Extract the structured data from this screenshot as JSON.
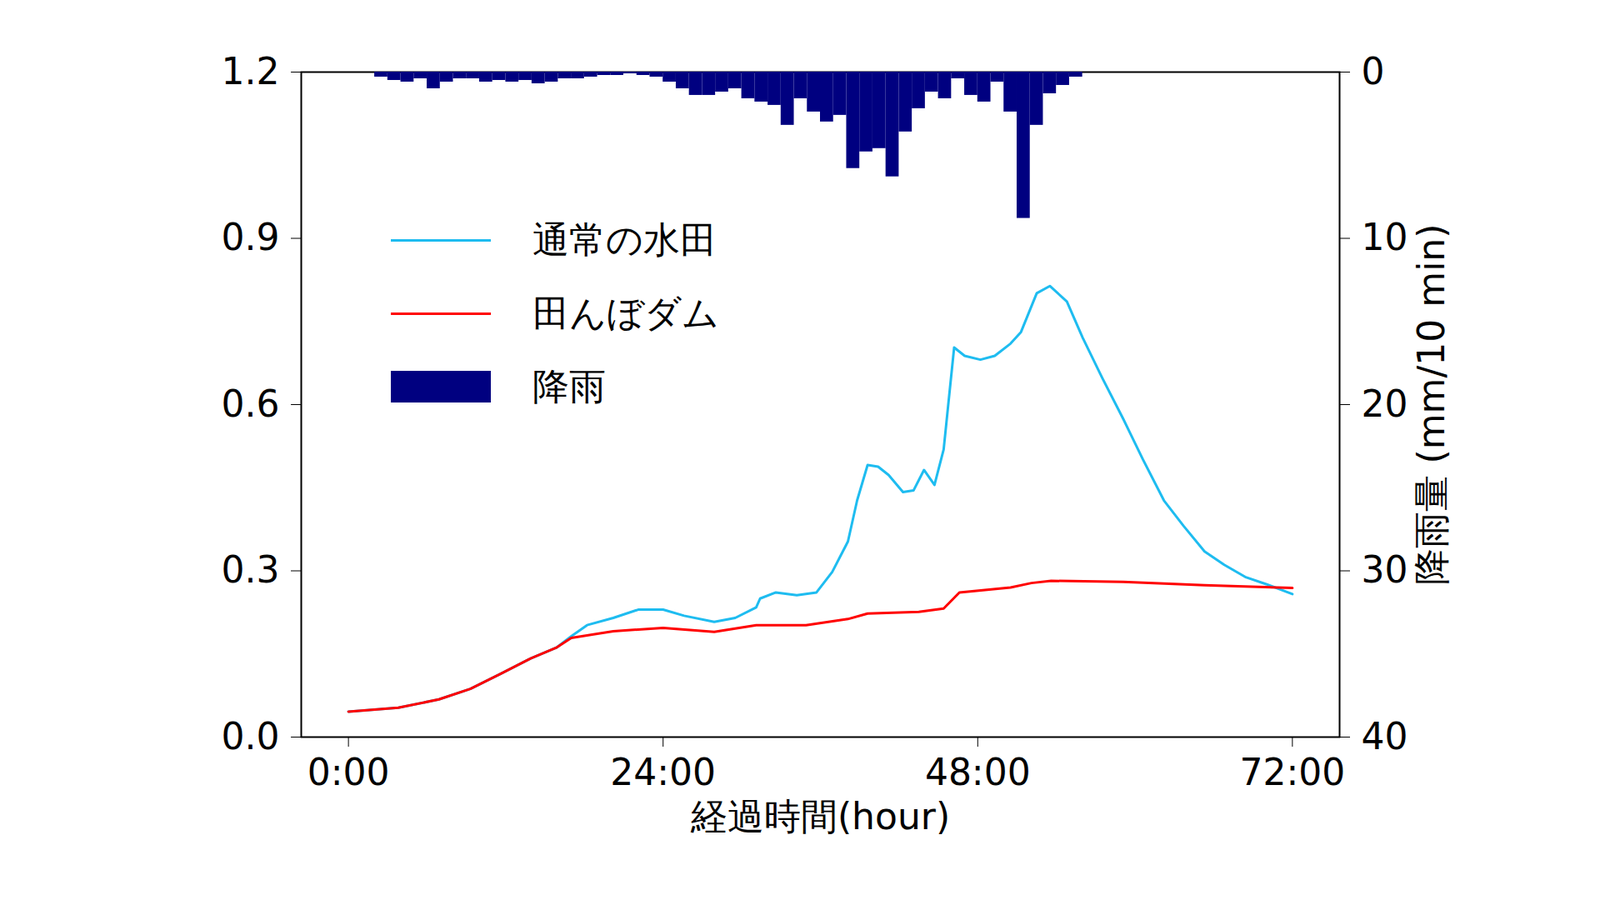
{
  "chart_data": {
    "type": "line",
    "xlabel": "経過時間(hour)",
    "y2label": "降雨量 (mm/10 min)",
    "xlim": [
      -3.6,
      75.6
    ],
    "xticks": [
      {
        "value": 0,
        "label": "0:00"
      },
      {
        "value": 24,
        "label": "24:00"
      },
      {
        "value": 48,
        "label": "48:00"
      },
      {
        "value": 72,
        "label": "72:00"
      }
    ],
    "ylim": [
      0,
      1.2
    ],
    "yticks": [
      {
        "value": 0,
        "label": "0.0"
      },
      0.3,
      0.6,
      0.9,
      1.2
    ],
    "y2lim": [
      0,
      40
    ],
    "y2ticks": [
      0,
      10,
      20,
      30,
      40
    ],
    "grid": false,
    "legend": "upper left",
    "series": [
      {
        "name": "通常の水田",
        "type": "line",
        "color": "#1ebcf0",
        "x": [
          0,
          3.8,
          6.9,
          9.3,
          11.6,
          13.9,
          15.9,
          17.0,
          18.2,
          20.2,
          22.1,
          24.0,
          25.6,
          27.9,
          29.5,
          31.1,
          31.4,
          32.6,
          34.2,
          35.7,
          36.9,
          38.1,
          38.8,
          39.6,
          40.4,
          41.2,
          42.3,
          43.1,
          43.9,
          44.7,
          45.4,
          46.2,
          47.0,
          48.2,
          49.3,
          50.5,
          51.3,
          52.5,
          53.5,
          54.8,
          56.0,
          57.5,
          59.1,
          60.6,
          62.2,
          63.7,
          65.3,
          66.8,
          68.4,
          70.0,
          72.0
        ],
        "values": [
          0.046,
          0.053,
          0.068,
          0.087,
          0.114,
          0.142,
          0.162,
          0.182,
          0.202,
          0.215,
          0.23,
          0.23,
          0.219,
          0.208,
          0.215,
          0.234,
          0.25,
          0.261,
          0.256,
          0.261,
          0.298,
          0.353,
          0.427,
          0.491,
          0.488,
          0.473,
          0.442,
          0.445,
          0.482,
          0.455,
          0.519,
          0.703,
          0.688,
          0.681,
          0.688,
          0.71,
          0.731,
          0.801,
          0.814,
          0.786,
          0.721,
          0.648,
          0.574,
          0.501,
          0.427,
          0.381,
          0.335,
          0.311,
          0.289,
          0.276,
          0.258
        ]
      },
      {
        "name": "田んぼダム",
        "type": "line",
        "color": "#ff0000",
        "x": [
          0,
          3.8,
          6.9,
          9.3,
          11.6,
          13.9,
          15.9,
          17.0,
          20.2,
          24.0,
          27.9,
          31.1,
          34.9,
          38.1,
          39.6,
          43.5,
          45.4,
          46.6,
          50.5,
          52.1,
          53.6,
          59.1,
          65.3,
          72.0
        ],
        "values": [
          0.046,
          0.053,
          0.068,
          0.087,
          0.114,
          0.142,
          0.162,
          0.179,
          0.191,
          0.197,
          0.19,
          0.202,
          0.202,
          0.213,
          0.223,
          0.226,
          0.232,
          0.261,
          0.27,
          0.278,
          0.282,
          0.28,
          0.274,
          0.269
        ]
      },
      {
        "name": "降雨",
        "type": "bar",
        "axis": "y2",
        "color": "#000080",
        "bins": [
          2,
          3,
          4,
          5,
          6,
          7,
          8,
          9,
          10,
          11,
          12,
          13,
          14,
          15,
          16,
          17,
          18,
          19,
          20,
          21,
          22,
          23,
          24,
          25,
          26,
          27,
          28,
          29,
          30,
          31,
          32,
          33,
          34,
          35,
          36,
          37,
          38,
          39,
          40,
          41,
          42,
          43,
          44,
          45,
          46,
          47,
          48,
          49,
          50,
          51,
          52,
          53,
          54,
          55,
          56
        ],
        "values": [
          0.3,
          0.5,
          0.6,
          0.4,
          1.0,
          0.6,
          0.4,
          0.4,
          0.6,
          0.5,
          0.6,
          0.5,
          0.7,
          0.6,
          0.4,
          0.4,
          0.3,
          0.2,
          0.2,
          0.1,
          0.2,
          0.3,
          0.6,
          1.0,
          1.4,
          1.4,
          1.2,
          1.0,
          1.6,
          1.8,
          2.0,
          3.2,
          1.6,
          2.4,
          3.0,
          2.6,
          5.8,
          4.8,
          4.6,
          6.3,
          3.6,
          2.2,
          1.2,
          1.6,
          0.4,
          1.4,
          1.8,
          0.6,
          2.4,
          8.8,
          3.2,
          1.3,
          0.8,
          0.3
        ]
      }
    ]
  }
}
